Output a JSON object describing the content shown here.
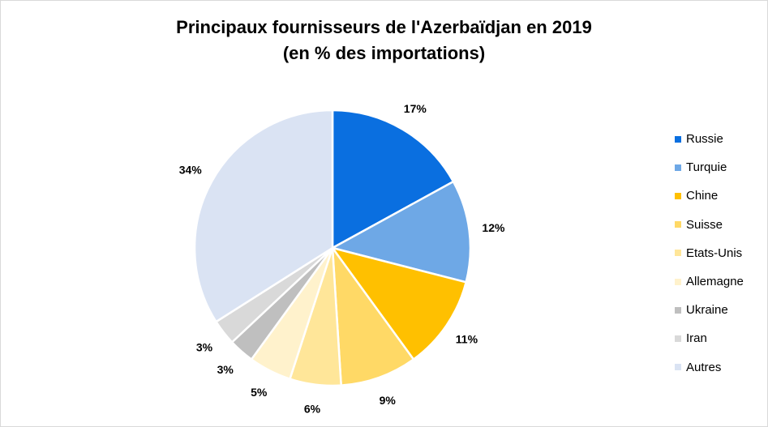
{
  "chart_data": {
    "type": "pie",
    "title_line1": "Principaux fournisseurs de l'Azerbaïdjan en 2019",
    "title_line2": "(en % des importations)",
    "categories": [
      "Russie",
      "Turquie",
      "Chine",
      "Suisse",
      "Etats-Unis",
      "Allemagne",
      "Ukraine",
      "Iran",
      "Autres"
    ],
    "values": [
      17,
      12,
      11,
      9,
      6,
      5,
      3,
      3,
      34
    ],
    "labels": [
      "17%",
      "12%",
      "11%",
      "9%",
      "6%",
      "5%",
      "3%",
      "3%",
      "34%"
    ],
    "colors": [
      "#0A6FE0",
      "#6EA8E6",
      "#FFC000",
      "#FFD966",
      "#FFE699",
      "#FFF2CC",
      "#BFBFBF",
      "#D9D9D9",
      "#DAE3F3"
    ],
    "legend_position": "right"
  }
}
